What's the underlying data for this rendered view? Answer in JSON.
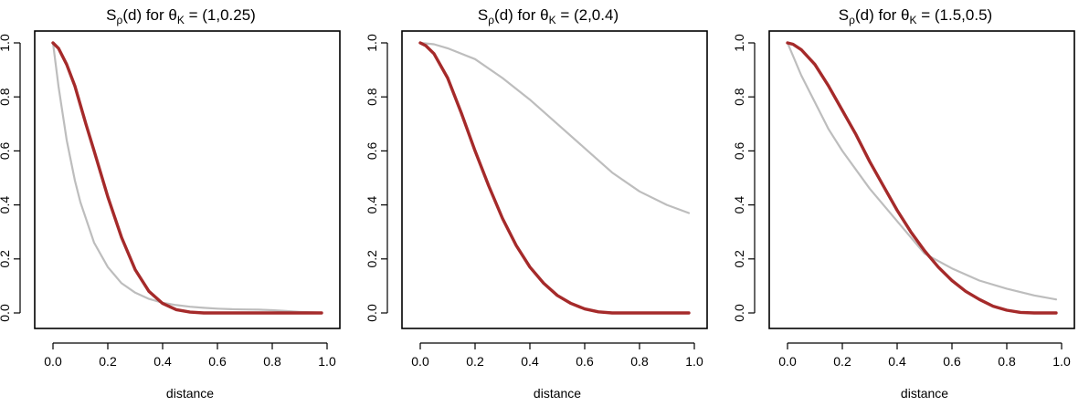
{
  "colors": {
    "red": "#a52a2a",
    "grey": "#bdbdbd"
  },
  "chart_data": [
    {
      "type": "line",
      "title": {
        "prefix": "S",
        "prefix_sub": "ρ",
        "middle": "(d) for ",
        "theta": "θ",
        "theta_sub": "K",
        "suffix": " = (1,0.25)"
      },
      "xlabel": "distance",
      "ylabel": "",
      "xlim": [
        0,
        1.0
      ],
      "ylim": [
        0,
        1.0
      ],
      "xticks": [
        "0.0",
        "0.2",
        "0.4",
        "0.6",
        "0.8",
        "1.0"
      ],
      "yticks": [
        "0.0",
        "0.2",
        "0.4",
        "0.6",
        "0.8",
        "1.0"
      ],
      "series": [
        {
          "color": "#bdbdbd",
          "x": [
            0,
            0.02,
            0.05,
            0.08,
            0.1,
            0.15,
            0.2,
            0.25,
            0.3,
            0.35,
            0.4,
            0.45,
            0.5,
            0.55,
            0.6,
            0.65,
            0.7,
            0.75,
            0.8,
            0.85,
            0.9,
            0.95,
            0.98
          ],
          "y": [
            1.0,
            0.84,
            0.64,
            0.49,
            0.41,
            0.26,
            0.17,
            0.11,
            0.075,
            0.052,
            0.038,
            0.029,
            0.023,
            0.019,
            0.016,
            0.014,
            0.013,
            0.012,
            0.01,
            0.007,
            0.004,
            0.002,
            0.001
          ]
        },
        {
          "color": "#a52a2a",
          "x": [
            0,
            0.02,
            0.05,
            0.08,
            0.1,
            0.12,
            0.15,
            0.2,
            0.25,
            0.3,
            0.35,
            0.4,
            0.45,
            0.5,
            0.55,
            0.6,
            0.7,
            0.8,
            0.9,
            0.98
          ],
          "y": [
            1.0,
            0.98,
            0.92,
            0.84,
            0.77,
            0.7,
            0.6,
            0.43,
            0.28,
            0.16,
            0.08,
            0.035,
            0.012,
            0.003,
            0.0,
            0.0,
            0.0,
            0.0,
            0.0,
            0.0
          ]
        }
      ]
    },
    {
      "type": "line",
      "title": {
        "prefix": "S",
        "prefix_sub": "ρ",
        "middle": "(d) for ",
        "theta": "θ",
        "theta_sub": "K",
        "suffix": " = (2,0.4)"
      },
      "xlabel": "distance",
      "ylabel": "",
      "xlim": [
        0,
        1.0
      ],
      "ylim": [
        0,
        1.0
      ],
      "xticks": [
        "0.0",
        "0.2",
        "0.4",
        "0.6",
        "0.8",
        "1.0"
      ],
      "yticks": [
        "0.0",
        "0.2",
        "0.4",
        "0.6",
        "0.8",
        "1.0"
      ],
      "series": [
        {
          "color": "#bdbdbd",
          "x": [
            0,
            0.05,
            0.1,
            0.2,
            0.3,
            0.4,
            0.5,
            0.6,
            0.7,
            0.8,
            0.9,
            0.98
          ],
          "y": [
            1.0,
            0.995,
            0.98,
            0.94,
            0.87,
            0.79,
            0.7,
            0.61,
            0.52,
            0.45,
            0.4,
            0.37
          ]
        },
        {
          "color": "#a52a2a",
          "x": [
            0,
            0.02,
            0.05,
            0.1,
            0.15,
            0.2,
            0.25,
            0.3,
            0.35,
            0.4,
            0.45,
            0.5,
            0.55,
            0.6,
            0.65,
            0.7,
            0.8,
            0.9,
            0.98
          ],
          "y": [
            1.0,
            0.99,
            0.96,
            0.87,
            0.74,
            0.6,
            0.47,
            0.35,
            0.25,
            0.17,
            0.11,
            0.065,
            0.035,
            0.015,
            0.004,
            0.0,
            0.0,
            0.0,
            0.0
          ]
        }
      ]
    },
    {
      "type": "line",
      "title": {
        "prefix": "S",
        "prefix_sub": "ρ",
        "middle": "(d) for ",
        "theta": "θ",
        "theta_sub": "K",
        "suffix": " = (1.5,0.5)"
      },
      "xlabel": "distance",
      "ylabel": "",
      "xlim": [
        0,
        1.0
      ],
      "ylim": [
        0,
        1.0
      ],
      "xticks": [
        "0.0",
        "0.2",
        "0.4",
        "0.6",
        "0.8",
        "1.0"
      ],
      "yticks": [
        "0.0",
        "0.2",
        "0.4",
        "0.6",
        "0.8",
        "1.0"
      ],
      "series": [
        {
          "color": "#bdbdbd",
          "x": [
            0,
            0.05,
            0.1,
            0.15,
            0.2,
            0.3,
            0.4,
            0.5,
            0.6,
            0.7,
            0.8,
            0.9,
            0.98
          ],
          "y": [
            1.0,
            0.88,
            0.78,
            0.68,
            0.6,
            0.46,
            0.34,
            0.22,
            0.165,
            0.12,
            0.09,
            0.065,
            0.05
          ]
        },
        {
          "color": "#a52a2a",
          "x": [
            0,
            0.02,
            0.05,
            0.1,
            0.15,
            0.2,
            0.25,
            0.3,
            0.35,
            0.4,
            0.45,
            0.5,
            0.55,
            0.6,
            0.65,
            0.7,
            0.75,
            0.8,
            0.85,
            0.9,
            0.98
          ],
          "y": [
            1.0,
            0.995,
            0.975,
            0.92,
            0.84,
            0.75,
            0.66,
            0.56,
            0.47,
            0.38,
            0.3,
            0.23,
            0.17,
            0.12,
            0.08,
            0.05,
            0.025,
            0.01,
            0.002,
            0.0,
            0.0
          ]
        }
      ]
    }
  ]
}
